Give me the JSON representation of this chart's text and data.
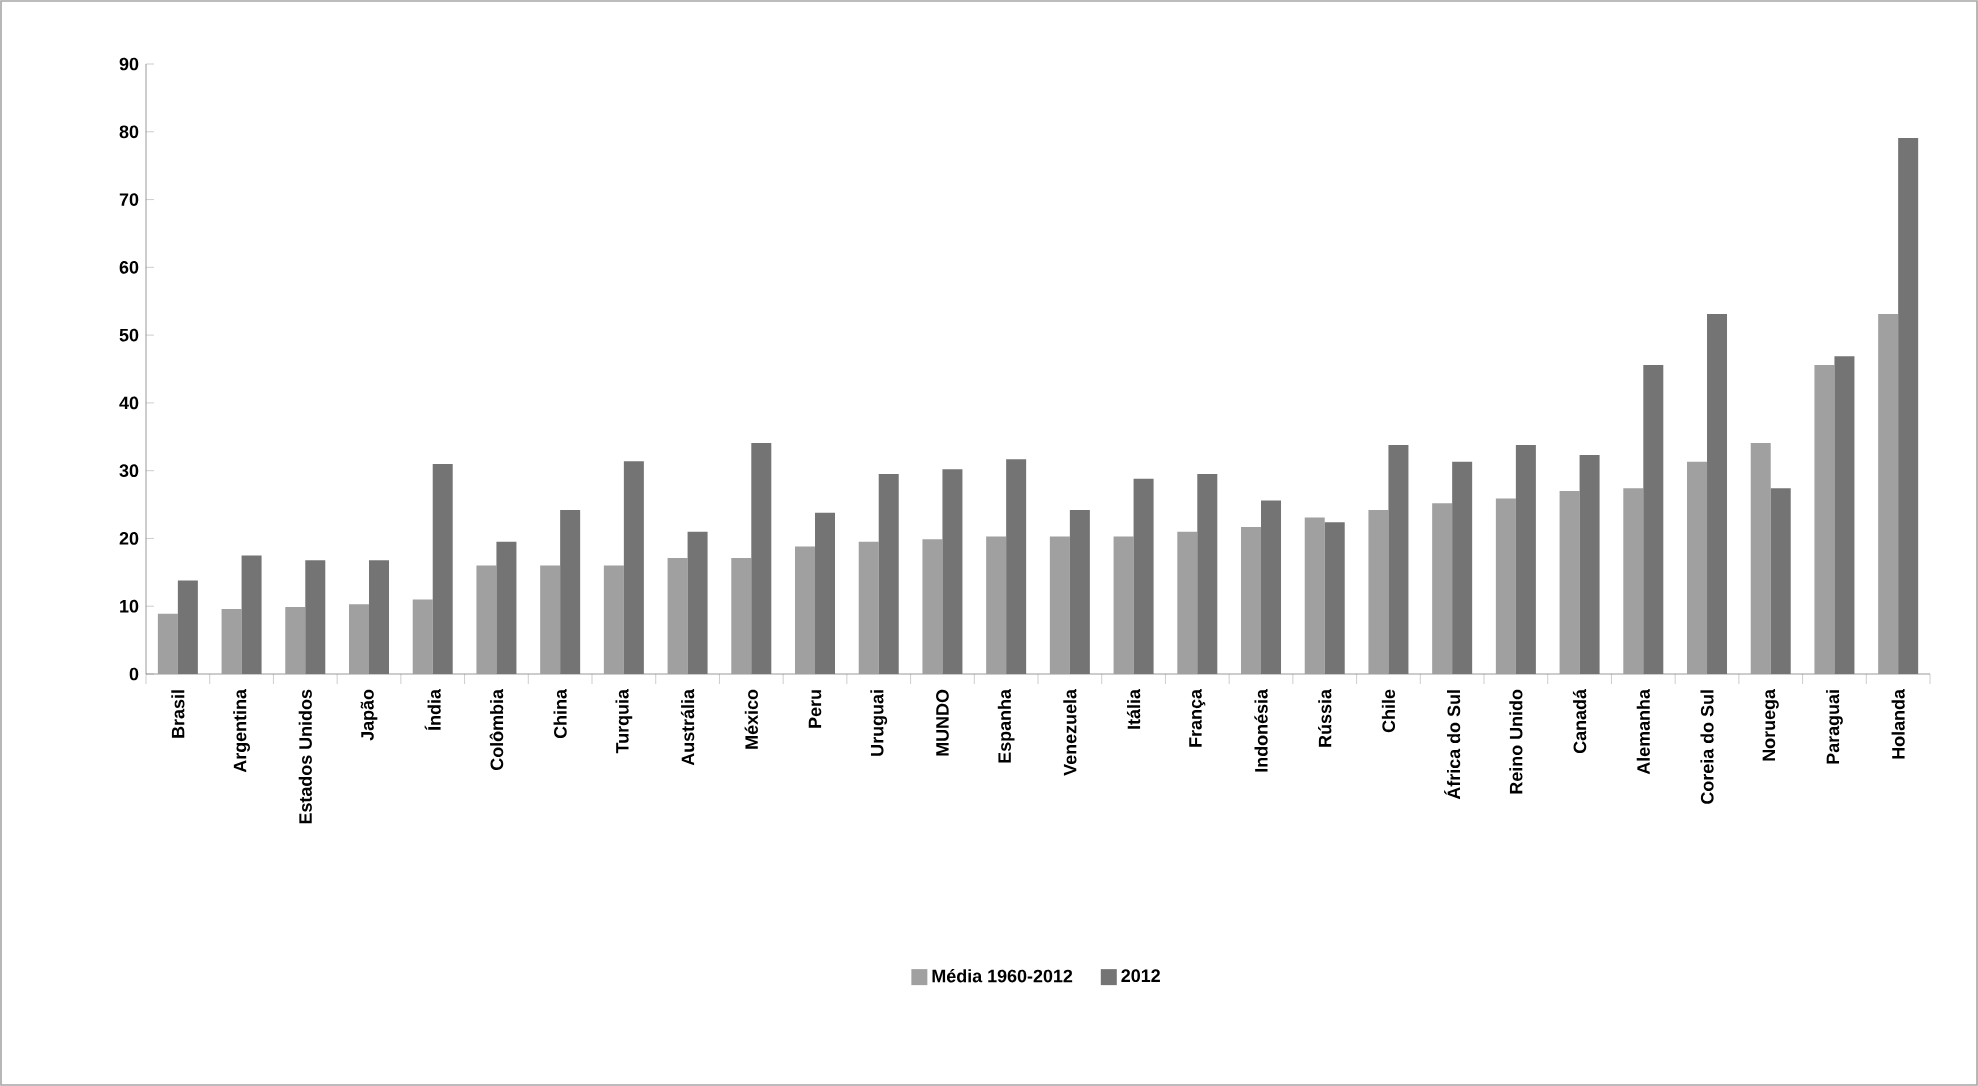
{
  "chart_data": {
    "type": "bar",
    "categories": [
      "Brasil",
      "Argentina",
      "Estados Unidos",
      "Japão",
      "Índia",
      "Colômbia",
      "China",
      "Turquia",
      "Austrália",
      "México",
      "Peru",
      "Uruguai",
      "MUNDO",
      "Espanha",
      "Venezuela",
      "Itália",
      "França",
      "Indonésia",
      "Rússia",
      "Chile",
      "África do Sul",
      "Reino Unido",
      "Canadá",
      "Alemanha",
      "Coreia do Sul",
      "Noruega",
      "Paraguai",
      "Holanda"
    ],
    "series": [
      {
        "name": "Média 1960-2012",
        "color": "#a0a0a0",
        "values": [
          8.9,
          9.6,
          9.9,
          10.3,
          11.0,
          16.0,
          16.0,
          16.0,
          17.1,
          17.1,
          18.8,
          19.5,
          19.9,
          20.3,
          20.3,
          20.3,
          21.0,
          21.7,
          23.1,
          24.2,
          25.2,
          25.9,
          27.0,
          27.4,
          31.3,
          34.1,
          45.6,
          53.1
        ]
      },
      {
        "name": "2012",
        "color": "#747474",
        "values": [
          13.8,
          17.5,
          16.8,
          16.8,
          31.0,
          19.5,
          24.2,
          31.4,
          21.0,
          34.1,
          23.8,
          29.5,
          30.2,
          31.7,
          24.2,
          28.8,
          29.5,
          25.6,
          22.4,
          33.8,
          31.3,
          33.8,
          32.3,
          45.6,
          53.1,
          27.4,
          46.9,
          79.1
        ]
      }
    ],
    "ylim": [
      0,
      90
    ],
    "yticks": [
      0,
      10,
      20,
      30,
      40,
      50,
      60,
      70,
      80,
      90
    ],
    "grid": false,
    "legend": "bottom"
  }
}
